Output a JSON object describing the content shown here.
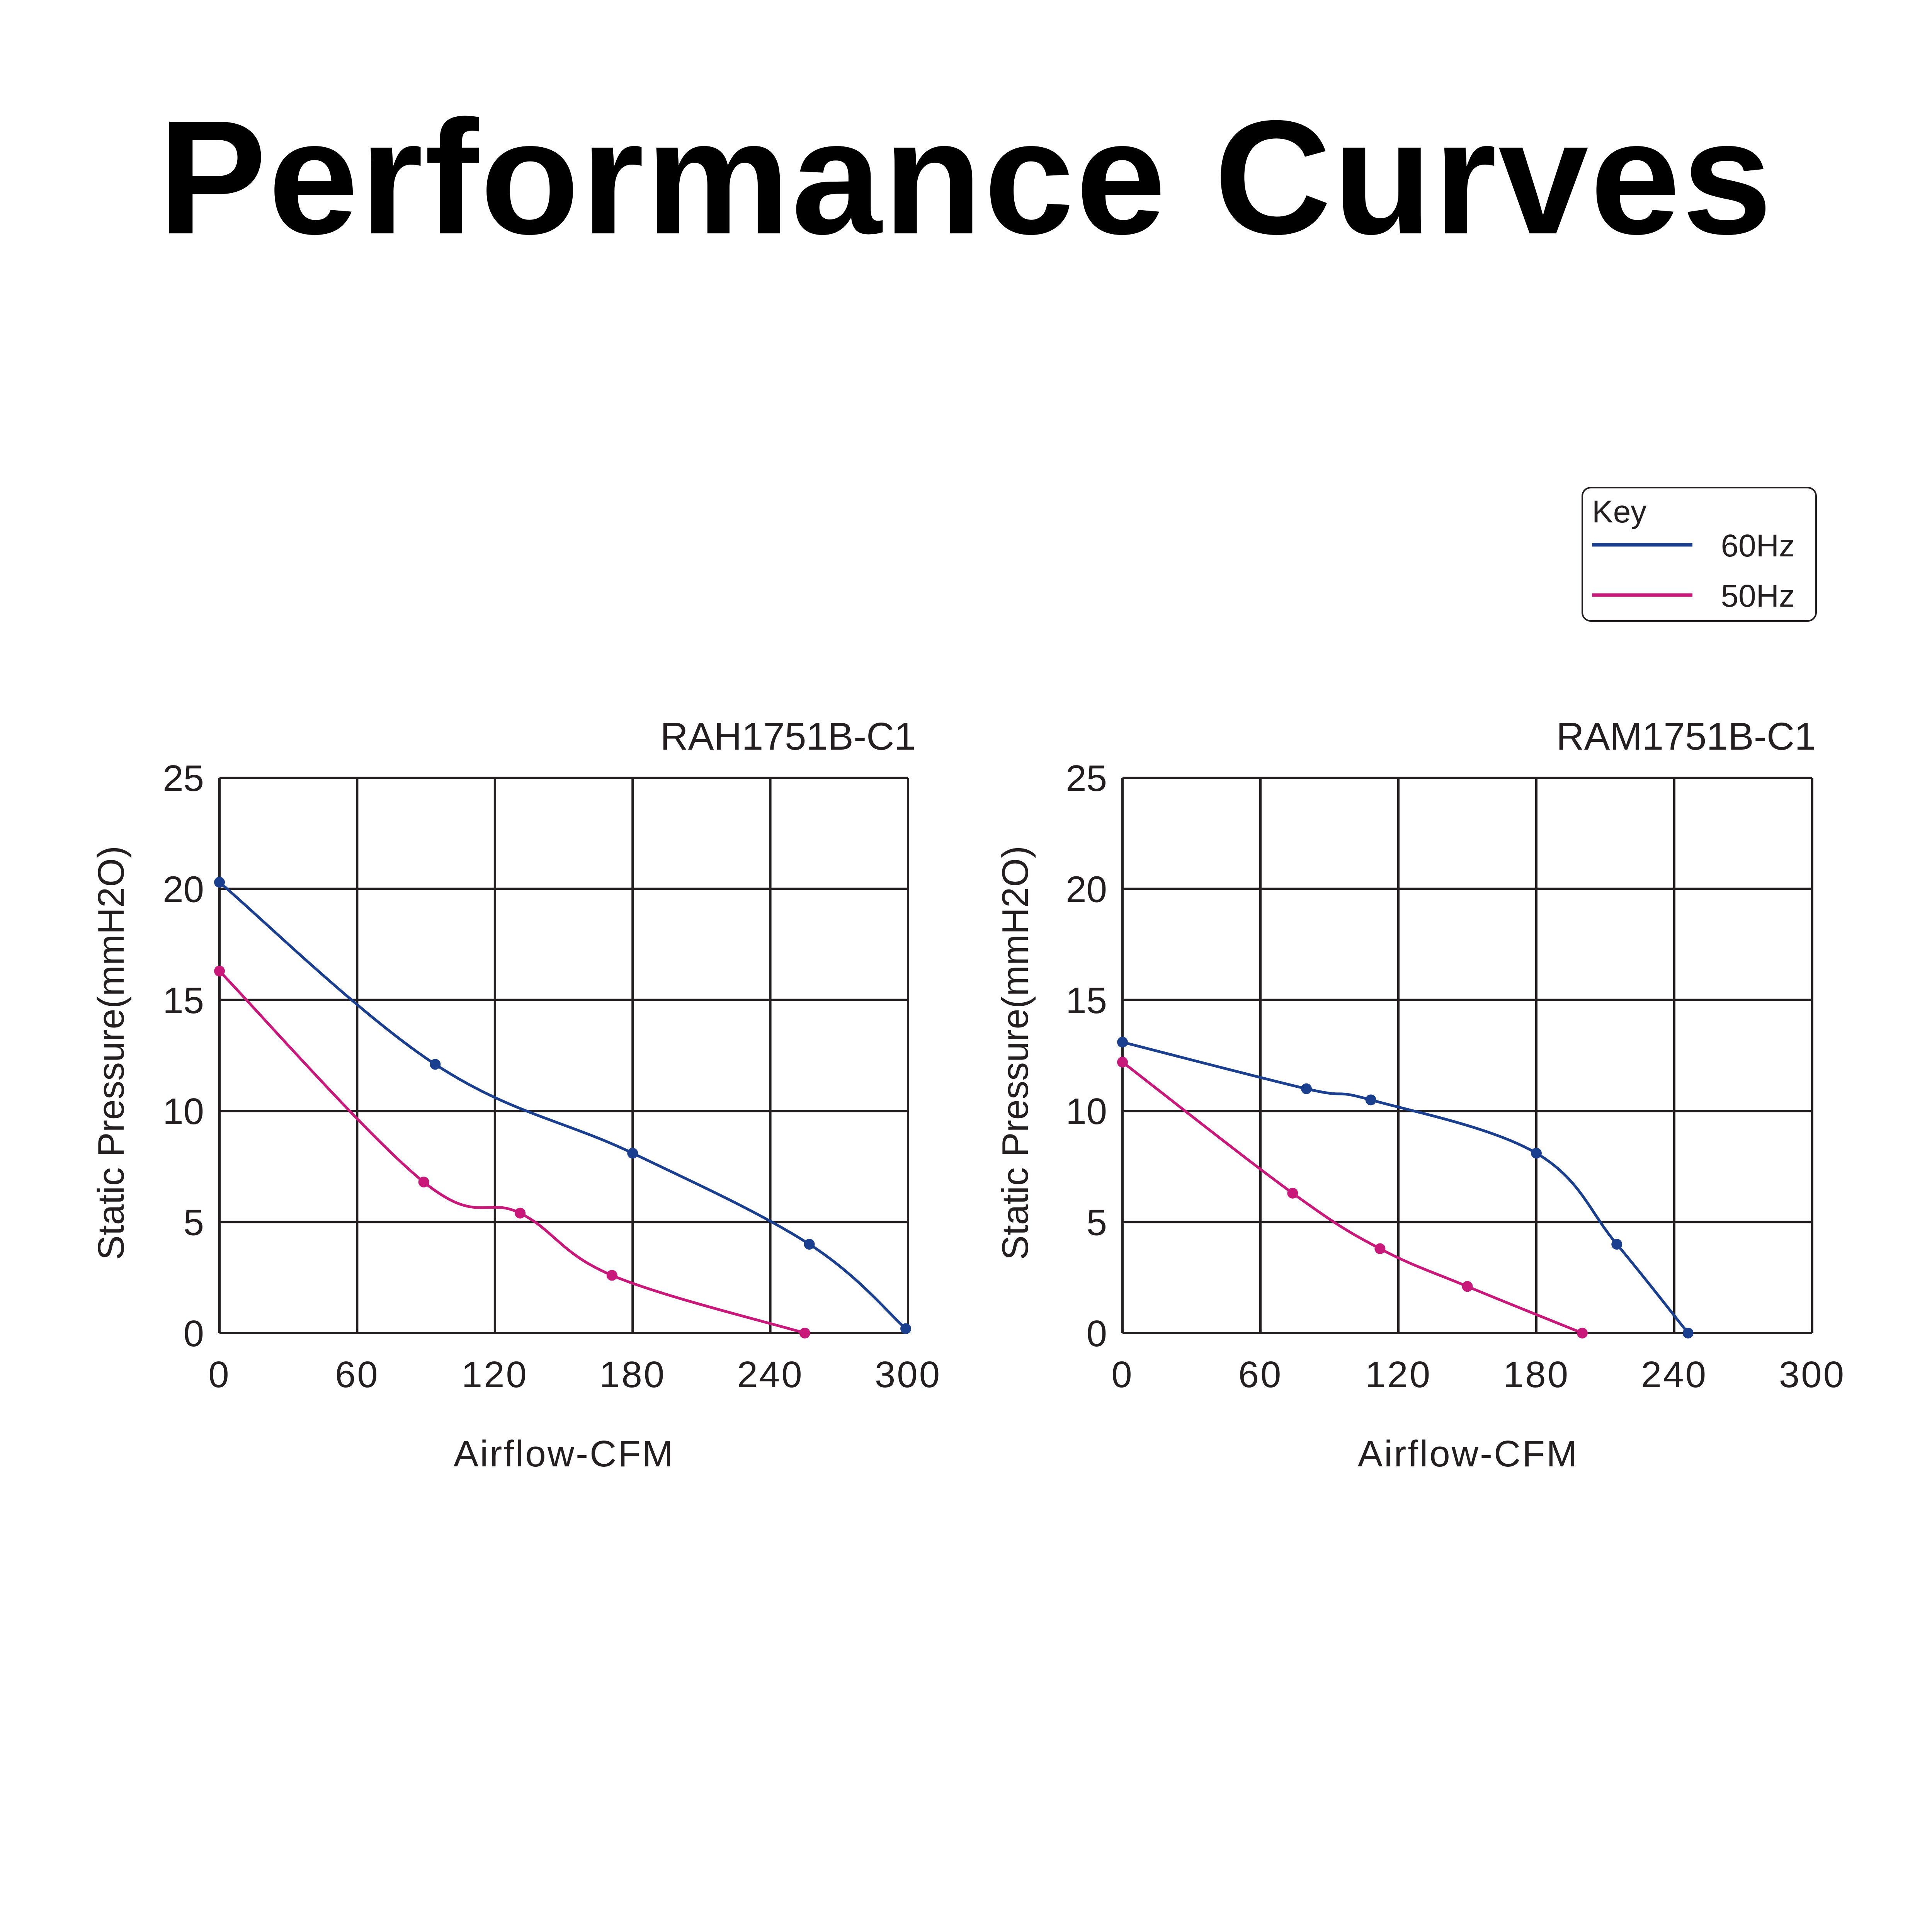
{
  "title": "Performance Curves",
  "legend": {
    "heading": "Key",
    "placement": "top-right",
    "entries": [
      {
        "label": "60Hz",
        "color": "#1a3f8f"
      },
      {
        "label": "50Hz",
        "color": "#c8187a"
      }
    ]
  },
  "chart_data": [
    {
      "type": "line",
      "title": "RAH1751B-C1",
      "xlabel": "Airflow-CFM",
      "ylabel": "Static Pressure(mmH2O)",
      "xlim": [
        0,
        300
      ],
      "ylim": [
        0,
        25
      ],
      "xticks": [
        "0",
        "60",
        "120",
        "180",
        "240",
        "300"
      ],
      "yticks": [
        "0",
        "5",
        "10",
        "15",
        "20",
        "25"
      ],
      "grid": true,
      "series": [
        {
          "name": "60Hz",
          "color": "#1a3f8f",
          "x": [
            0,
            94,
            180,
            257,
            299
          ],
          "y": [
            20.3,
            12.1,
            8.1,
            4.0,
            0.2
          ]
        },
        {
          "name": "50Hz",
          "color": "#c8187a",
          "x": [
            0,
            89,
            131,
            171,
            255
          ],
          "y": [
            16.3,
            6.8,
            5.4,
            2.6,
            0
          ]
        }
      ]
    },
    {
      "type": "line",
      "title": "RAM1751B-C1",
      "xlabel": "Airflow-CFM",
      "ylabel": "Static Pressure(mmH2O)",
      "xlim": [
        0,
        300
      ],
      "ylim": [
        0,
        25
      ],
      "xticks": [
        "0",
        "60",
        "120",
        "180",
        "240",
        "300"
      ],
      "yticks": [
        "0",
        "5",
        "10",
        "15",
        "20",
        "25"
      ],
      "grid": true,
      "series": [
        {
          "name": "60Hz",
          "color": "#1a3f8f",
          "x": [
            0,
            80,
            108,
            180,
            215,
            246
          ],
          "y": [
            13.1,
            11.0,
            10.5,
            8.1,
            4.0,
            0
          ]
        },
        {
          "name": "50Hz",
          "color": "#c8187a",
          "x": [
            0,
            74,
            112,
            150,
            200
          ],
          "y": [
            12.2,
            6.3,
            3.8,
            2.1,
            0
          ]
        }
      ]
    }
  ]
}
